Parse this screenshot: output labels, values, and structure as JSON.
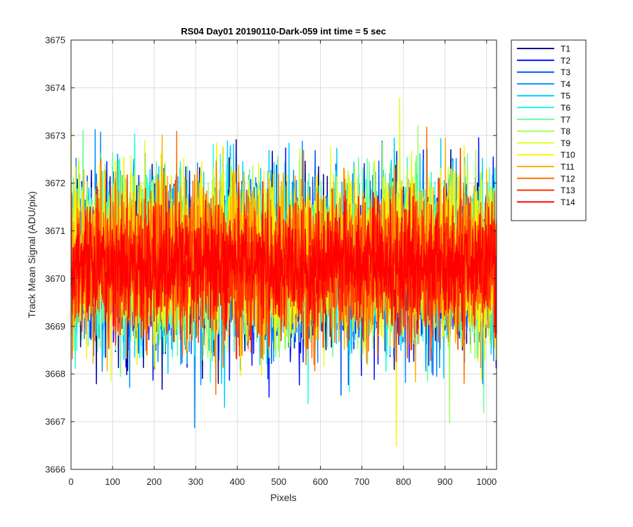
{
  "chart_data": {
    "type": "line",
    "title": "RS04 Day01 20190110-Dark-059 int time = 5 sec",
    "xlabel": "Pixels",
    "ylabel": "Track Mean Signal (ADU/pix)",
    "xlim": [
      0,
      1024
    ],
    "ylim": [
      3666,
      3675
    ],
    "xticks": [
      0,
      100,
      200,
      300,
      400,
      500,
      600,
      700,
      800,
      900,
      1000
    ],
    "yticks": [
      3666,
      3667,
      3668,
      3669,
      3670,
      3671,
      3672,
      3673,
      3674,
      3675
    ],
    "grid": true,
    "legend_position": "outside-top-right",
    "n_points": 1024,
    "series": [
      {
        "name": "T1",
        "color": "#00008f",
        "mean": 3670.3,
        "std": 0.85
      },
      {
        "name": "T2",
        "color": "#0010ff",
        "mean": 3670.2,
        "std": 0.9
      },
      {
        "name": "T3",
        "color": "#0050ff",
        "mean": 3670.3,
        "std": 0.85
      },
      {
        "name": "T4",
        "color": "#0090ff",
        "mean": 3670.4,
        "std": 0.85
      },
      {
        "name": "T5",
        "color": "#00d0ff",
        "mean": 3670.4,
        "std": 0.85
      },
      {
        "name": "T6",
        "color": "#20ffdf",
        "mean": 3670.4,
        "std": 0.85
      },
      {
        "name": "T7",
        "color": "#60ff9f",
        "mean": 3670.4,
        "std": 0.85
      },
      {
        "name": "T8",
        "color": "#9fff60",
        "mean": 3670.4,
        "std": 0.85
      },
      {
        "name": "T9",
        "color": "#dfff20",
        "mean": 3670.5,
        "std": 0.85
      },
      {
        "name": "T10",
        "color": "#ffef00",
        "mean": 3670.5,
        "std": 0.85
      },
      {
        "name": "T11",
        "color": "#ffb000",
        "mean": 3670.4,
        "std": 0.8
      },
      {
        "name": "T12",
        "color": "#ff7000",
        "mean": 3670.3,
        "std": 0.8
      },
      {
        "name": "T13",
        "color": "#ff3000",
        "mean": 3670.2,
        "std": 0.75
      },
      {
        "name": "T14",
        "color": "#ff0000",
        "mean": 3670.3,
        "std": 0.55
      }
    ]
  }
}
